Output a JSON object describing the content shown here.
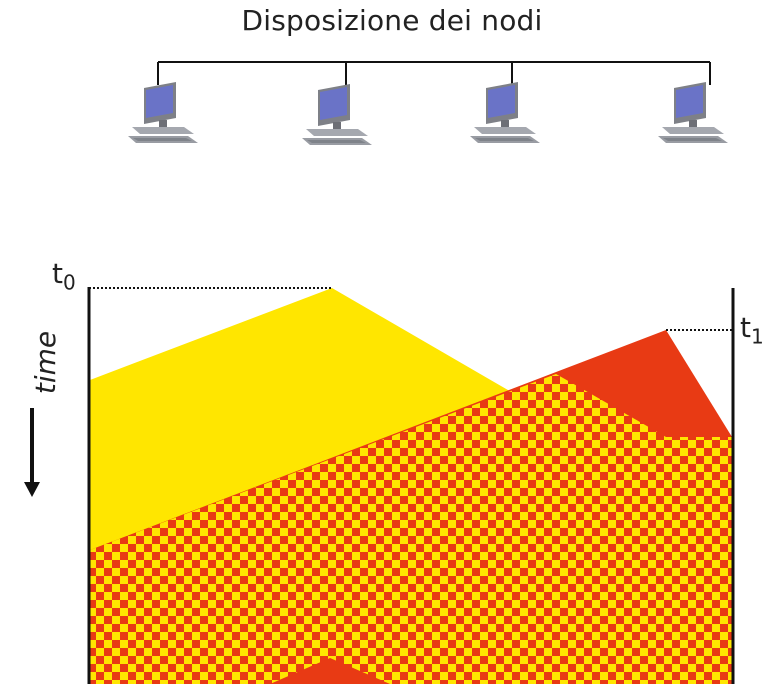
{
  "title": "Disposizione dei nodi",
  "time_label": "time",
  "t0_label": "t",
  "t0_sub": "0",
  "t1_label": "t",
  "t1_sub": "1",
  "nodes": [
    {
      "name": "computer-1"
    },
    {
      "name": "computer-2"
    },
    {
      "name": "computer-3"
    },
    {
      "name": "computer-4"
    }
  ],
  "colors": {
    "yellow": "#ffe600",
    "red": "#e83a14",
    "line": "#111111"
  }
}
